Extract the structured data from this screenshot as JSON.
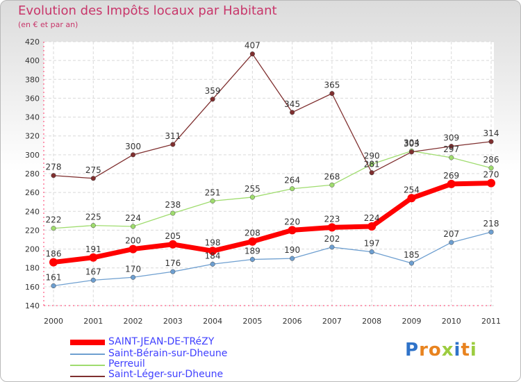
{
  "chart_data": {
    "type": "line",
    "title": "Evolution des Impôts locaux par Habitant",
    "subtitle": "(en € et par an)",
    "x": [
      "2000",
      "2001",
      "2002",
      "2003",
      "2004",
      "2005",
      "2006",
      "2007",
      "2008",
      "2009",
      "2010",
      "2011"
    ],
    "ylim": [
      140,
      420
    ],
    "yticks": [
      140,
      160,
      180,
      200,
      220,
      240,
      260,
      280,
      300,
      320,
      340,
      360,
      380,
      400,
      420
    ],
    "series": [
      {
        "name": "SAINT-JEAN-DE-TRéZY",
        "color": "#ff0000",
        "values": [
          186,
          191,
          200,
          205,
          198,
          208,
          220,
          223,
          224,
          254,
          269,
          270
        ]
      },
      {
        "name": "Saint-Bérain-sur-Dheune",
        "color": "#6e9fd0",
        "values": [
          161,
          167,
          170,
          176,
          184,
          189,
          190,
          202,
          197,
          185,
          207,
          218
        ]
      },
      {
        "name": "Perreuil",
        "color": "#9fdc6e",
        "values": [
          222,
          225,
          224,
          238,
          251,
          255,
          264,
          268,
          290,
          304,
          297,
          286
        ]
      },
      {
        "name": "Saint-Léger-sur-Dheune",
        "color": "#7f2f2f",
        "values": [
          278,
          275,
          300,
          311,
          359,
          407,
          345,
          365,
          281,
          303,
          309,
          314
        ]
      }
    ]
  },
  "brand": {
    "letters": [
      "P",
      "r",
      "o",
      "x",
      "i",
      "t",
      "i"
    ],
    "colors": [
      "#2f73c9",
      "#e8831f",
      "#e8831f",
      "#9ccc3f",
      "#2f73c9",
      "#e8831f",
      "#9ccc3f"
    ]
  }
}
